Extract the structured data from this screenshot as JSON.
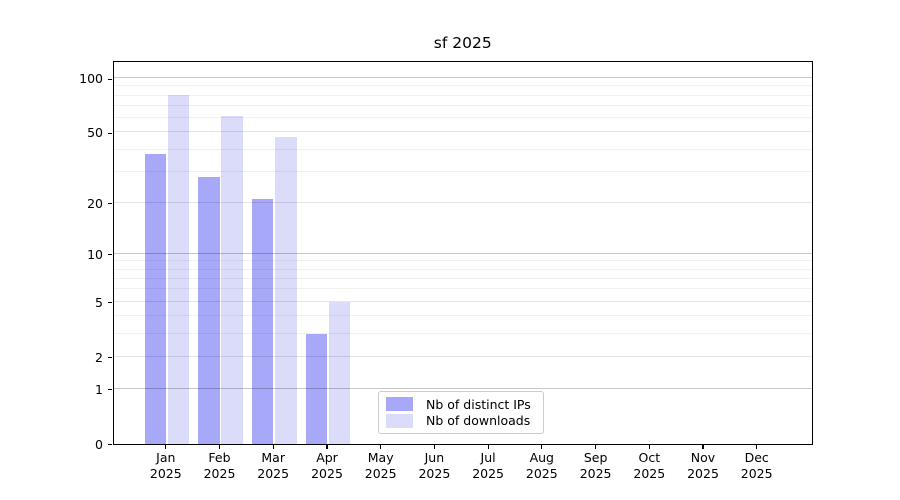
{
  "chart_data": {
    "type": "bar",
    "title": "sf 2025",
    "categories": [
      "Jan 2025",
      "Feb 2025",
      "Mar 2025",
      "Apr 2025",
      "May 2025",
      "Jun 2025",
      "Jul 2025",
      "Aug 2025",
      "Sep 2025",
      "Oct 2025",
      "Nov 2025",
      "Dec 2025"
    ],
    "month_labels": [
      "Jan",
      "Feb",
      "Mar",
      "Apr",
      "May",
      "Jun",
      "Jul",
      "Aug",
      "Sep",
      "Oct",
      "Nov",
      "Dec"
    ],
    "year_label": "2025",
    "series": [
      {
        "name": "Nb of distinct IPs",
        "color": "#a8a8f8",
        "values": [
          38,
          28,
          21,
          3,
          0,
          0,
          0,
          0,
          0,
          0,
          0,
          0
        ]
      },
      {
        "name": "Nb of downloads",
        "color": "#dbdbfa",
        "values": [
          81,
          62,
          47,
          5,
          0,
          0,
          0,
          0,
          0,
          0,
          0,
          0
        ]
      }
    ],
    "xlabel": "",
    "ylabel": "",
    "yscale": "log1p",
    "ylim": [
      0,
      126
    ],
    "y_ticks": [
      0,
      1,
      2,
      5,
      10,
      20,
      50,
      100
    ],
    "decade_gridlines": [
      1,
      10,
      100
    ],
    "major_gridlines": [
      2,
      5,
      20,
      50
    ],
    "minor_gridlines": [
      3,
      4,
      6,
      7,
      8,
      9,
      30,
      40,
      60,
      70,
      80,
      90
    ],
    "grid": true,
    "legend_position": "lower center"
  }
}
